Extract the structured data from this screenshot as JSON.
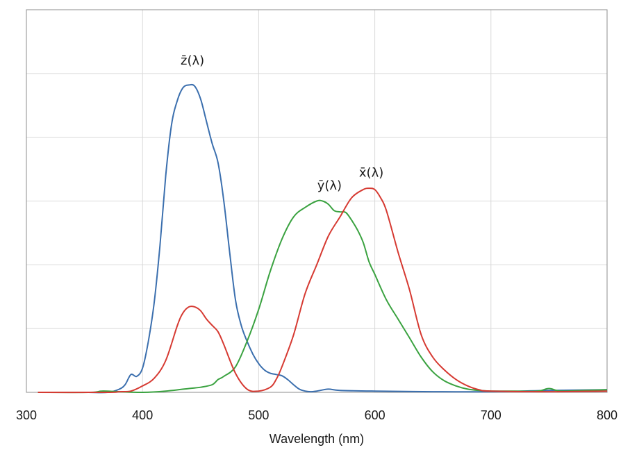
{
  "chart_data": {
    "type": "line",
    "title": "",
    "xlabel": "Wavelength (nm)",
    "ylabel": "",
    "xlim": [
      300,
      800
    ],
    "ylim": [
      0,
      6
    ],
    "x_ticks": [
      300,
      400,
      500,
      600,
      700,
      800
    ],
    "y_gridlines": [
      1,
      2,
      3,
      4,
      5,
      6
    ],
    "grid": true,
    "legend": "none",
    "series": [
      {
        "name": "z̄(λ)",
        "color": "#3b6fae",
        "label_at": [
          443,
          5.14
        ],
        "x": [
          310,
          350,
          370,
          380,
          385,
          390,
          395,
          400,
          405,
          410,
          415,
          420,
          425,
          430,
          435,
          440,
          445,
          450,
          455,
          460,
          465,
          470,
          475,
          480,
          485,
          490,
          495,
          500,
          505,
          510,
          515,
          520,
          525,
          530,
          535,
          540,
          545,
          550,
          560,
          570,
          600,
          650,
          700,
          750,
          800
        ],
        "y": [
          0,
          0,
          0,
          0.05,
          0.12,
          0.28,
          0.25,
          0.38,
          0.8,
          1.4,
          2.3,
          3.4,
          4.2,
          4.58,
          4.78,
          4.82,
          4.8,
          4.6,
          4.25,
          3.9,
          3.6,
          3.0,
          2.2,
          1.45,
          1.05,
          0.8,
          0.6,
          0.45,
          0.35,
          0.3,
          0.28,
          0.26,
          0.2,
          0.12,
          0.05,
          0.02,
          0.01,
          0.02,
          0.05,
          0.03,
          0.02,
          0.01,
          0.01,
          0.03,
          0.04
        ]
      },
      {
        "name": "ȳ(λ)",
        "color": "#3aa240",
        "label_at": [
          561,
          3.18
        ],
        "x": [
          310,
          355,
          365,
          380,
          400,
          420,
          440,
          450,
          460,
          465,
          470,
          480,
          490,
          500,
          510,
          520,
          530,
          540,
          550,
          555,
          560,
          565,
          570,
          575,
          580,
          585,
          590,
          595,
          600,
          610,
          620,
          630,
          640,
          650,
          660,
          670,
          680,
          690,
          700,
          720,
          740,
          750,
          760,
          780,
          800
        ],
        "y": [
          0,
          0,
          0.02,
          0.01,
          0,
          0.02,
          0.06,
          0.08,
          0.12,
          0.2,
          0.25,
          0.4,
          0.8,
          1.3,
          1.9,
          2.4,
          2.75,
          2.9,
          3.0,
          3.0,
          2.95,
          2.85,
          2.83,
          2.82,
          2.7,
          2.55,
          2.35,
          2.05,
          1.85,
          1.45,
          1.15,
          0.85,
          0.55,
          0.32,
          0.18,
          0.1,
          0.05,
          0.03,
          0.02,
          0.02,
          0.02,
          0.06,
          0.02,
          0.03,
          0.04
        ]
      },
      {
        "name": "x̄(λ)",
        "color": "#d63a32",
        "label_at": [
          597,
          3.38
        ],
        "x": [
          310,
          370,
          380,
          390,
          400,
          410,
          420,
          430,
          435,
          440,
          445,
          450,
          455,
          460,
          465,
          470,
          480,
          490,
          500,
          510,
          515,
          520,
          530,
          540,
          550,
          560,
          570,
          580,
          590,
          595,
          600,
          605,
          610,
          620,
          630,
          640,
          650,
          660,
          670,
          680,
          690,
          700,
          750,
          800
        ],
        "y": [
          0,
          0,
          0.01,
          0.02,
          0.1,
          0.22,
          0.5,
          1.05,
          1.25,
          1.34,
          1.34,
          1.28,
          1.15,
          1.05,
          0.95,
          0.75,
          0.3,
          0.05,
          0.02,
          0.08,
          0.2,
          0.4,
          0.9,
          1.55,
          2.0,
          2.45,
          2.75,
          3.05,
          3.18,
          3.2,
          3.18,
          3.05,
          2.85,
          2.2,
          1.6,
          0.9,
          0.55,
          0.35,
          0.2,
          0.1,
          0.04,
          0.02,
          0.01,
          0.02
        ]
      }
    ]
  }
}
